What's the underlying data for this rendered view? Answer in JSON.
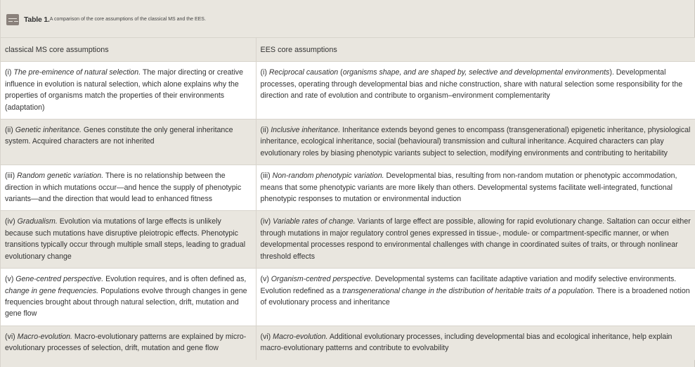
{
  "caption": {
    "label": "Table 1.",
    "text": "A comparison of the core assumptions of the classical MS and the EES.",
    "icon": "table-icon"
  },
  "headers": [
    "classical MS core assumptions",
    "EES core assumptions"
  ],
  "rows": [
    [
      [
        [
          "(i) ",
          0
        ],
        [
          "The pre-eminence of natural selection.",
          1
        ],
        [
          " The major directing or creative influence in evolution is natural selection, which alone explains why the properties of organisms match the properties of their environments (adaptation)",
          0
        ]
      ],
      [
        [
          "(i) ",
          0
        ],
        [
          "Reciprocal causation",
          1
        ],
        [
          " (",
          0
        ],
        [
          "organisms shape, and are shaped by, selective and developmental environments",
          1
        ],
        [
          "). Developmental processes, operating through developmental bias and niche construction, share with natural selection some responsibility for the direction and rate of evolution and contribute to organism–environment complementarity",
          0
        ]
      ]
    ],
    [
      [
        [
          "(ii) ",
          0
        ],
        [
          "Genetic inheritance.",
          1
        ],
        [
          " Genes constitute the only general inheritance system. Acquired characters are not inherited",
          0
        ]
      ],
      [
        [
          "(ii) ",
          0
        ],
        [
          "Inclusive inheritance.",
          1
        ],
        [
          " Inheritance extends beyond genes to encompass (transgenerational) epigenetic inheritance, physiological inheritance, ecological inheritance, social (behavioural) transmission and cultural inheritance. Acquired characters can play evolutionary roles by biasing phenotypic variants subject to selection, modifying environments and contributing to heritability",
          0
        ]
      ]
    ],
    [
      [
        [
          "(iii) ",
          0
        ],
        [
          "Random genetic variation.",
          1
        ],
        [
          " There is no relationship between the direction in which mutations occur—and hence the supply of phenotypic variants—and the direction that would lead to enhanced fitness",
          0
        ]
      ],
      [
        [
          "(iii) ",
          0
        ],
        [
          "Non-random phenotypic variation.",
          1
        ],
        [
          " Developmental bias, resulting from non-random mutation or phenotypic accommodation, means that some phenotypic variants are more likely than others. Developmental systems facilitate well-integrated, functional phenotypic responses to mutation or environmental induction",
          0
        ]
      ]
    ],
    [
      [
        [
          "(iv) ",
          0
        ],
        [
          "Gradualism.",
          1
        ],
        [
          " Evolution via mutations of large effects is unlikely because such mutations have disruptive pleiotropic effects. Phenotypic transitions typically occur through multiple small steps, leading to gradual evolutionary change",
          0
        ]
      ],
      [
        [
          "(iv) ",
          0
        ],
        [
          "Variable rates of change.",
          1
        ],
        [
          " Variants of large effect are possible, allowing for rapid evolutionary change. Saltation can occur either through mutations in major regulatory control genes expressed in tissue-, module- or compartment-specific manner, or when developmental processes respond to environmental challenges with change in coordinated suites of traits, or through nonlinear threshold effects",
          0
        ]
      ]
    ],
    [
      [
        [
          "(v) ",
          0
        ],
        [
          "Gene-centred perspective.",
          1
        ],
        [
          " Evolution requires, and is often defined as, ",
          0
        ],
        [
          "change in gene frequencies.",
          1
        ],
        [
          " Populations evolve through changes in gene frequencies brought about through natural selection, drift, mutation and gene flow",
          0
        ]
      ],
      [
        [
          "(v) ",
          0
        ],
        [
          "Organism-centred perspective.",
          1
        ],
        [
          " Developmental systems can facilitate adaptive variation and modify selective environments. Evolution redefined as a ",
          0
        ],
        [
          "transgenerational change in the distribution of heritable traits of a population.",
          1
        ],
        [
          " There is a broadened notion of evolutionary process and inheritance",
          0
        ]
      ]
    ],
    [
      [
        [
          "(vi) ",
          0
        ],
        [
          "Macro-evolution.",
          1
        ],
        [
          " Macro-evolutionary patterns are explained by micro-evolutionary processes of selection, drift, mutation and gene flow",
          0
        ]
      ],
      [
        [
          "(vi) ",
          0
        ],
        [
          "Macro-evolution.",
          1
        ],
        [
          " Additional evolutionary processes, including developmental bias and ecological inheritance, help explain macro-evolutionary patterns and contribute to evolvability",
          0
        ]
      ]
    ]
  ]
}
